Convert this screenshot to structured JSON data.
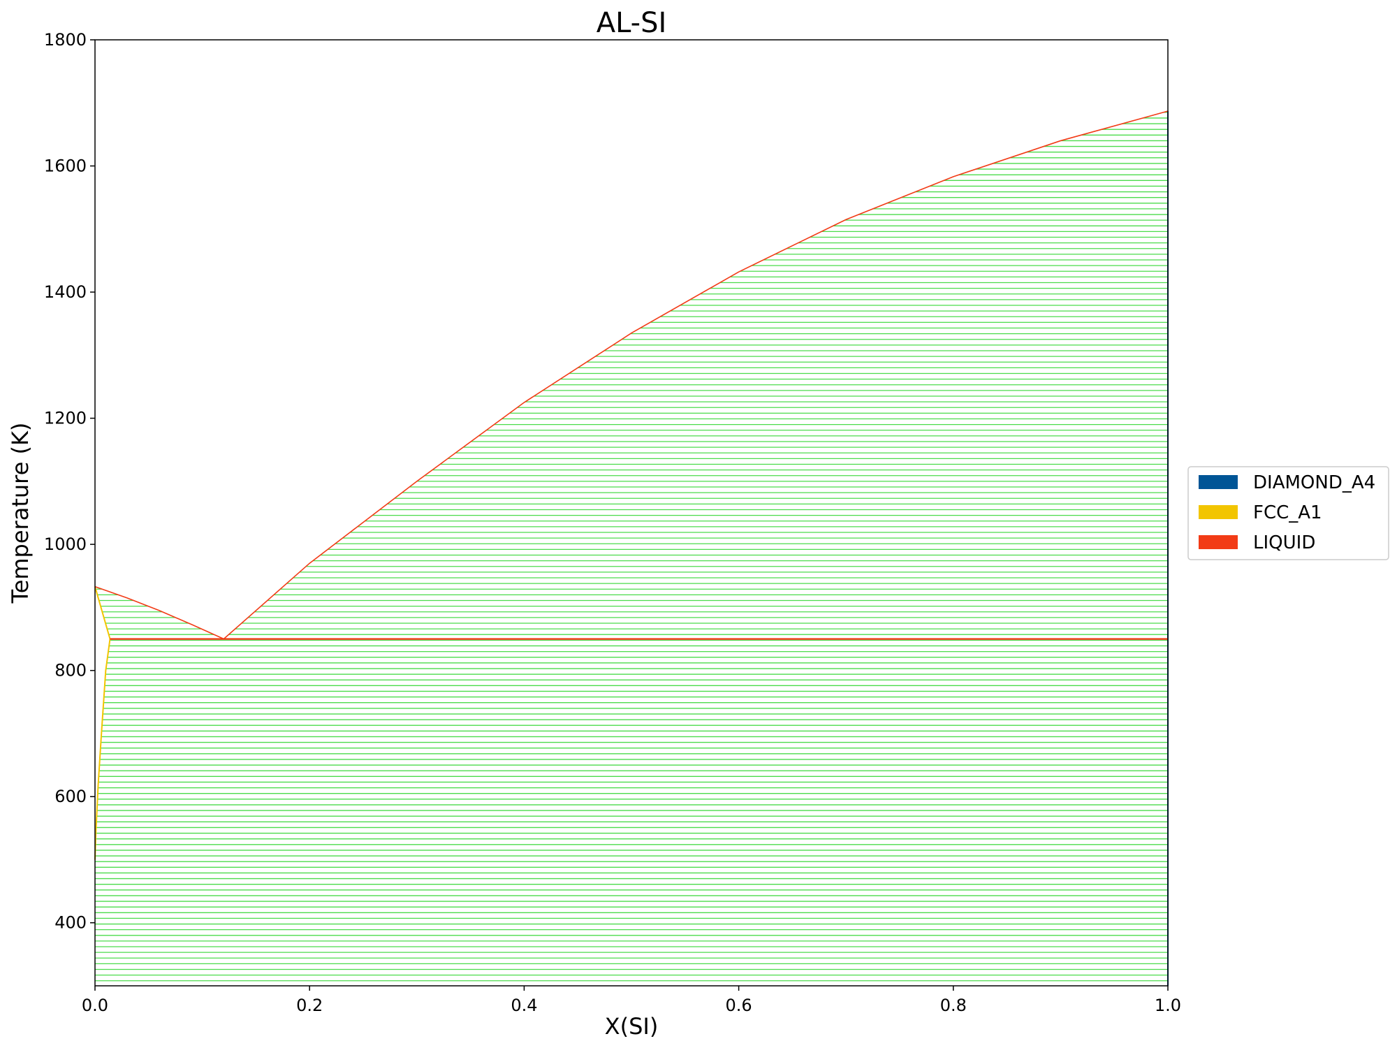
{
  "chart_data": {
    "type": "line",
    "title": "AL-SI",
    "xlabel": "X(SI)",
    "ylabel": "Temperature (K)",
    "xlim": [
      0.0,
      1.0
    ],
    "ylim": [
      300,
      1800
    ],
    "x_ticks": [
      "0.0",
      "0.2",
      "0.4",
      "0.6",
      "0.8",
      "1.0"
    ],
    "y_ticks": [
      "400",
      "600",
      "800",
      "1000",
      "1200",
      "1400",
      "1600",
      "1800"
    ],
    "grid": false,
    "legend_position": "right",
    "legend": [
      {
        "name": "DIAMOND_A4",
        "color": "#005596"
      },
      {
        "name": "FCC_A1",
        "color": "#f2c500"
      },
      {
        "name": "LIQUID",
        "color": "#f23b16"
      }
    ],
    "tie_line_color": "#4bdc4b",
    "eutectic": {
      "x": 0.12,
      "temperature": 850
    },
    "liquidus_al_side": [
      [
        0.0,
        933
      ],
      [
        0.03,
        915
      ],
      [
        0.06,
        895
      ],
      [
        0.09,
        873
      ],
      [
        0.12,
        850
      ]
    ],
    "liquidus_si_side": [
      [
        0.12,
        850
      ],
      [
        0.2,
        970
      ],
      [
        0.3,
        1100
      ],
      [
        0.4,
        1225
      ],
      [
        0.5,
        1335
      ],
      [
        0.6,
        1432
      ],
      [
        0.7,
        1515
      ],
      [
        0.8,
        1583
      ],
      [
        0.9,
        1640
      ],
      [
        1.0,
        1687
      ]
    ],
    "fcc_solidus": [
      [
        0.0,
        933
      ],
      [
        0.014,
        850
      ]
    ],
    "fcc_solvus": [
      [
        0.014,
        850
      ],
      [
        0.01,
        800
      ],
      [
        0.006,
        700
      ],
      [
        0.003,
        620
      ],
      [
        0.001,
        550
      ],
      [
        0.0,
        500
      ]
    ],
    "diamond_boundary": [
      [
        1.0,
        300
      ],
      [
        1.0,
        1687
      ]
    ]
  }
}
